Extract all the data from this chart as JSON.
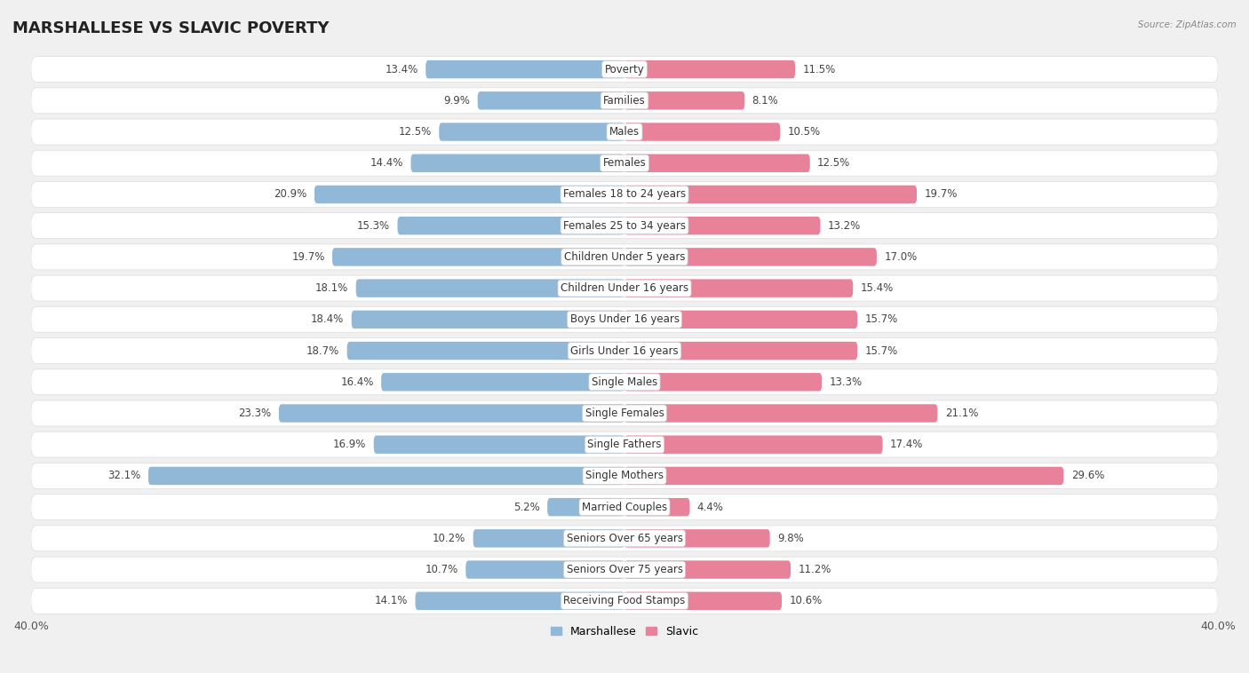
{
  "title": "MARSHALLESE VS SLAVIC POVERTY",
  "source": "Source: ZipAtlas.com",
  "categories": [
    "Poverty",
    "Families",
    "Males",
    "Females",
    "Females 18 to 24 years",
    "Females 25 to 34 years",
    "Children Under 5 years",
    "Children Under 16 years",
    "Boys Under 16 years",
    "Girls Under 16 years",
    "Single Males",
    "Single Females",
    "Single Fathers",
    "Single Mothers",
    "Married Couples",
    "Seniors Over 65 years",
    "Seniors Over 75 years",
    "Receiving Food Stamps"
  ],
  "marshallese": [
    13.4,
    9.9,
    12.5,
    14.4,
    20.9,
    15.3,
    19.7,
    18.1,
    18.4,
    18.7,
    16.4,
    23.3,
    16.9,
    32.1,
    5.2,
    10.2,
    10.7,
    14.1
  ],
  "slavic": [
    11.5,
    8.1,
    10.5,
    12.5,
    19.7,
    13.2,
    17.0,
    15.4,
    15.7,
    15.7,
    13.3,
    21.1,
    17.4,
    29.6,
    4.4,
    9.8,
    11.2,
    10.6
  ],
  "marshallese_color": "#92b8d8",
  "slavic_color": "#e8829a",
  "marshallese_label": "Marshallese",
  "slavic_label": "Slavic",
  "axis_max": 40.0,
  "background_color": "#f0f0f0",
  "row_bg_color": "#e2e2e2",
  "bar_height": 0.58,
  "title_fontsize": 13,
  "label_fontsize": 8.5,
  "value_fontsize": 8.5,
  "axis_label_fontsize": 9
}
